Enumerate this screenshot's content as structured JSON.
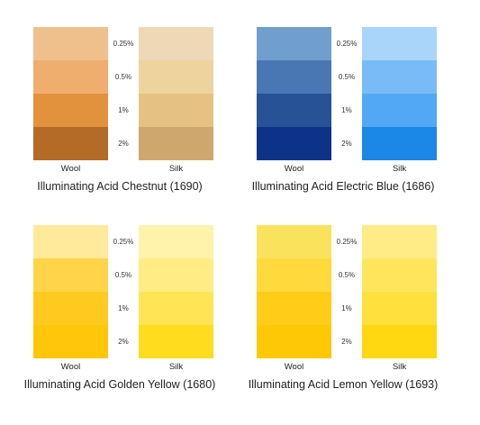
{
  "concentrations": [
    "0.25%",
    "0.5%",
    "1%",
    "2%"
  ],
  "labels": {
    "wool": "Wool",
    "silk": "Silk"
  },
  "cards": [
    {
      "title": "Illuminating Acid Chestnut (1690)",
      "wool_colors": [
        "#F0C08C",
        "#EFAE6E",
        "#E2923C",
        "#B46B28"
      ],
      "silk_colors": [
        "#EED8B6",
        "#EFD39D",
        "#E5C283",
        "#CDA76D"
      ]
    },
    {
      "title": "Illuminating Acid Electric Blue (1686)",
      "wool_colors": [
        "#719FCD",
        "#4877B4",
        "#275296",
        "#0D3389"
      ],
      "silk_colors": [
        "#A9D5FB",
        "#79BBF6",
        "#52A8F4",
        "#1B87E6"
      ]
    },
    {
      "title": "Illuminating Acid Golden Yellow (1680)",
      "wool_colors": [
        "#FFE99A",
        "#FFD448",
        "#FFCA20",
        "#FFC60A"
      ],
      "silk_colors": [
        "#FFF2AA",
        "#FFEC85",
        "#FFE556",
        "#FFDC1E"
      ]
    },
    {
      "title": "Illuminating Acid Lemon Yellow (1693)",
      "wool_colors": [
        "#F9E35C",
        "#FFDA3C",
        "#FFCC18",
        "#FFC806"
      ],
      "silk_colors": [
        "#FFEC86",
        "#FFE55C",
        "#FFE03C",
        "#FFD812"
      ]
    }
  ]
}
